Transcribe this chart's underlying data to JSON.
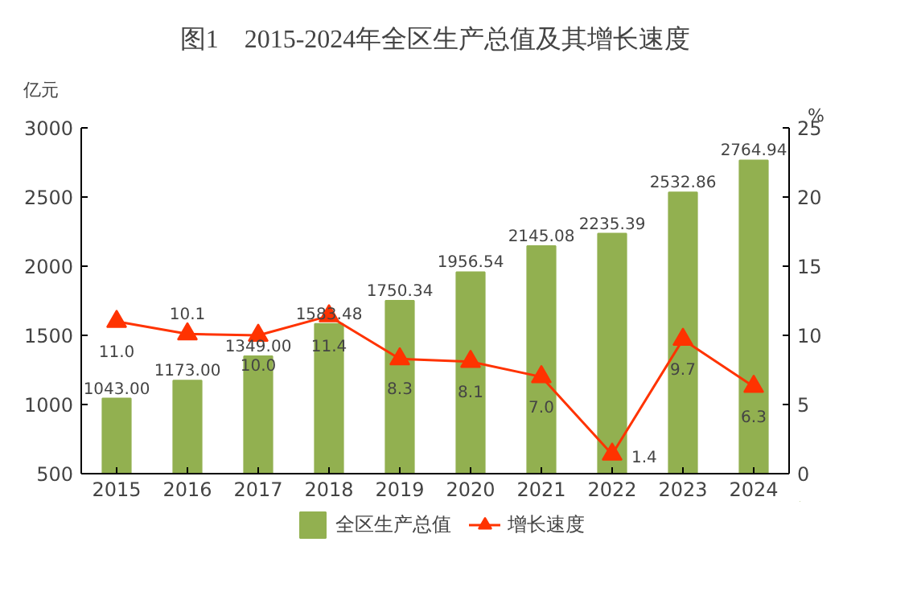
{
  "chart_data": {
    "type": "bar",
    "title": "图1　2015-2024年全区生产总值及其增长速度",
    "ylabel": "亿元",
    "y2label": "%",
    "categories": [
      "2015",
      "2016",
      "2017",
      "2018",
      "2019",
      "2020",
      "2021",
      "2022",
      "2023",
      "2024"
    ],
    "series": [
      {
        "name": "全区生产总值",
        "color": "#92b050",
        "values": [
          1043.0,
          1173.0,
          1349.0,
          1583.48,
          1750.34,
          1956.54,
          2145.08,
          2235.39,
          2532.86,
          2764.94
        ],
        "value_labels": [
          "1043.00",
          "1173.00",
          "1349.00",
          "1583.48",
          "1750.34",
          "1956.54",
          "2145.08",
          "2235.39",
          "2532.86",
          "2764.94"
        ]
      },
      {
        "name": "增长速度",
        "type": "line",
        "axis": "y2",
        "color": "#ff3300",
        "marker": "triangle",
        "values": [
          11.0,
          10.1,
          10.0,
          11.4,
          8.3,
          8.1,
          7.0,
          1.4,
          9.7,
          6.3
        ],
        "value_labels": [
          "11.0",
          "10.1",
          "10.0",
          "11.4",
          "8.3",
          "8.1",
          "7.0",
          "1.4",
          "9.7",
          "6.3"
        ]
      }
    ],
    "ylim": [
      500,
      3000
    ],
    "yticks": [
      500,
      1000,
      1500,
      2000,
      2500,
      3000
    ],
    "y2lim": [
      0,
      25
    ],
    "y2ticks": [
      0,
      5,
      10,
      15,
      20,
      25
    ],
    "grid": false,
    "legend": "bottom"
  }
}
